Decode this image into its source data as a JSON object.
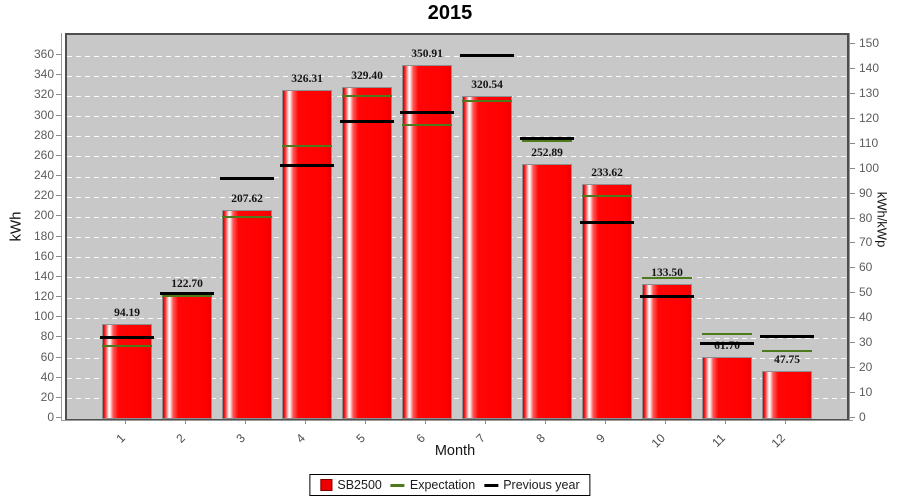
{
  "chart_data": {
    "type": "bar",
    "title": "2015",
    "xlabel": "Month",
    "ylabel_left": "kWh",
    "ylabel_right": "kWh/kWp",
    "categories": [
      "1",
      "2",
      "3",
      "4",
      "5",
      "6",
      "7",
      "8",
      "9",
      "10",
      "11",
      "12"
    ],
    "series": [
      {
        "name": "SB2500",
        "type": "bar",
        "color": "#ff0000",
        "values": [
          94.19,
          122.7,
          207.62,
          326.31,
          329.4,
          350.91,
          320.54,
          252.89,
          233.62,
          133.5,
          61.7,
          47.75
        ],
        "labels": [
          "94.19",
          "122.70",
          "207.62",
          "326.31",
          "329.40",
          "350.91",
          "320.54",
          "252.89",
          "233.62",
          "133.50",
          "61.70",
          "47.75"
        ]
      },
      {
        "name": "Expectation",
        "type": "segment-line",
        "color": "#4e7a1e",
        "values": [
          72,
          122,
          200,
          271,
          320,
          292,
          316,
          276,
          221,
          140,
          84,
          67
        ]
      },
      {
        "name": "Previous year",
        "type": "segment-line",
        "color": "#000000",
        "values": [
          81,
          125,
          239,
          252,
          295,
          304,
          361,
          278,
          195,
          122,
          75,
          82
        ]
      }
    ],
    "axes": {
      "left": {
        "label": "kWh",
        "min": 0,
        "max": 381,
        "tick_step": 20,
        "tick_max": 360
      },
      "right": {
        "label": "kWh/kWp",
        "min": 0,
        "max": 154,
        "tick_step": 10,
        "tick_max": 150
      },
      "grid": "white-dashed-horizontal"
    },
    "legend_position": "bottom",
    "plot_background": "#c8c8c8"
  }
}
